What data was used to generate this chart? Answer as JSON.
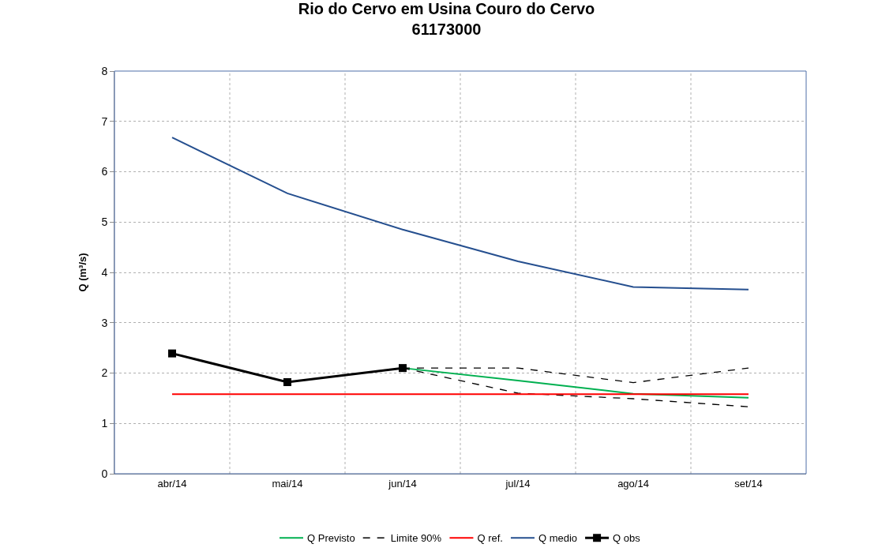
{
  "chart_data": {
    "type": "line",
    "title": "Rio do Cervo em Usina Couro do Cervo",
    "subtitle": "61173000",
    "ylabel": "Q (m³/s)",
    "categories": [
      "abr/14",
      "mai/14",
      "jun/14",
      "jul/14",
      "ago/14",
      "set/14"
    ],
    "ylim": [
      0,
      8
    ],
    "yticks": [
      0,
      1,
      2,
      3,
      4,
      5,
      6,
      7,
      8
    ],
    "grid": true,
    "legend": "bottom",
    "series": [
      {
        "name": "Q Previsto",
        "color": "#00b050",
        "values": [
          null,
          null,
          2.1,
          1.85,
          1.59,
          1.51
        ]
      },
      {
        "name": "Limite 90%",
        "color": "#000000",
        "line_style": "dashed",
        "values": [
          null,
          null,
          2.1,
          2.1,
          1.81,
          2.1
        ]
      },
      {
        "color": "#000000",
        "line_style": "dashed",
        "values": [
          null,
          null,
          2.1,
          1.6,
          1.49,
          1.33
        ]
      },
      {
        "name": "Q ref.",
        "color": "#ff0000",
        "values": [
          1.58,
          1.58,
          1.58,
          1.58,
          1.58,
          1.58
        ]
      },
      {
        "name": "Q medio",
        "color": "#254f8f",
        "values": [
          6.68,
          5.57,
          4.85,
          4.22,
          3.71,
          3.66
        ]
      },
      {
        "name": "Q obs",
        "color": "#000000",
        "marker": "square",
        "values": [
          2.39,
          1.82,
          2.1,
          null,
          null,
          null
        ]
      }
    ]
  }
}
